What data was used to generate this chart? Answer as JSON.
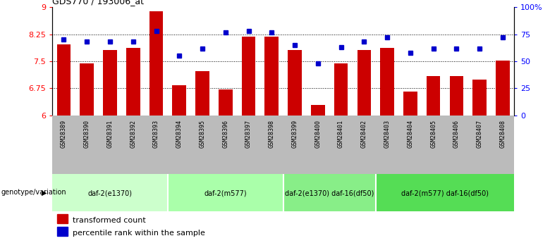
{
  "title": "GDS770 / 193006_at",
  "samples": [
    "GSM28389",
    "GSM28390",
    "GSM28391",
    "GSM28392",
    "GSM28393",
    "GSM28394",
    "GSM28395",
    "GSM28396",
    "GSM28397",
    "GSM28398",
    "GSM28399",
    "GSM28400",
    "GSM28401",
    "GSM28402",
    "GSM28403",
    "GSM28404",
    "GSM28405",
    "GSM28406",
    "GSM28407",
    "GSM28408"
  ],
  "bar_values": [
    7.98,
    7.45,
    7.82,
    7.88,
    8.88,
    6.83,
    7.22,
    6.72,
    8.18,
    8.18,
    7.82,
    6.3,
    7.45,
    7.82,
    7.88,
    6.67,
    7.1,
    7.1,
    7.0,
    7.52
  ],
  "percentile_values": [
    70,
    68,
    68,
    68,
    78,
    55,
    62,
    77,
    78,
    77,
    65,
    48,
    63,
    68,
    72,
    58,
    62,
    62,
    62,
    72
  ],
  "ylim_left": [
    6.0,
    9.0
  ],
  "ylim_right": [
    0,
    100
  ],
  "yticks_left": [
    6.0,
    6.75,
    7.5,
    8.25,
    9.0
  ],
  "yticks_right": [
    0,
    25,
    50,
    75,
    100
  ],
  "ytick_labels_left": [
    "6",
    "6.75",
    "7.5",
    "8.25",
    "9"
  ],
  "ytick_labels_right": [
    "0",
    "25",
    "50",
    "75",
    "100%"
  ],
  "bar_color": "#cc0000",
  "dot_color": "#0000cc",
  "groups": [
    {
      "label": "daf-2(e1370)",
      "start": 0,
      "end": 5,
      "color": "#ccffcc"
    },
    {
      "label": "daf-2(m577)",
      "start": 5,
      "end": 10,
      "color": "#aaffaa"
    },
    {
      "label": "daf-2(e1370) daf-16(df50)",
      "start": 10,
      "end": 14,
      "color": "#88ee88"
    },
    {
      "label": "daf-2(m577) daf-16(df50)",
      "start": 14,
      "end": 20,
      "color": "#55dd55"
    }
  ],
  "group_row_color": "#bbbbbb",
  "genotype_label": "genotype/variation",
  "legend_bar_label": "transformed count",
  "legend_dot_label": "percentile rank within the sample",
  "hline_values": [
    6.75,
    7.5,
    8.25
  ],
  "bar_baseline": 6.0
}
